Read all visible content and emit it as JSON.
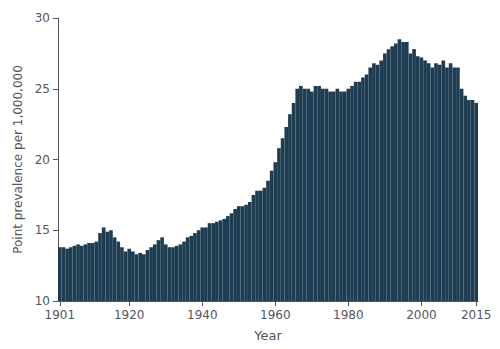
{
  "chart_data": {
    "type": "bar",
    "x": [
      1901,
      1902,
      1903,
      1904,
      1905,
      1906,
      1907,
      1908,
      1909,
      1910,
      1911,
      1912,
      1913,
      1914,
      1915,
      1916,
      1917,
      1918,
      1919,
      1920,
      1921,
      1922,
      1923,
      1924,
      1925,
      1926,
      1927,
      1928,
      1929,
      1930,
      1931,
      1932,
      1933,
      1934,
      1935,
      1936,
      1937,
      1938,
      1939,
      1940,
      1941,
      1942,
      1943,
      1944,
      1945,
      1946,
      1947,
      1948,
      1949,
      1950,
      1951,
      1952,
      1953,
      1954,
      1955,
      1956,
      1957,
      1958,
      1959,
      1960,
      1961,
      1962,
      1963,
      1964,
      1965,
      1966,
      1967,
      1968,
      1969,
      1970,
      1971,
      1972,
      1973,
      1974,
      1975,
      1976,
      1977,
      1978,
      1979,
      1980,
      1981,
      1982,
      1983,
      1984,
      1985,
      1986,
      1987,
      1988,
      1989,
      1990,
      1991,
      1992,
      1993,
      1994,
      1995,
      1996,
      1997,
      1998,
      1999,
      2000,
      2001,
      2002,
      2003,
      2004,
      2005,
      2006,
      2007,
      2008,
      2009,
      2010,
      2011,
      2012,
      2013,
      2014,
      2015
    ],
    "values": [
      13.8,
      13.8,
      13.7,
      13.8,
      13.9,
      14.0,
      13.9,
      14.0,
      14.1,
      14.1,
      14.2,
      14.8,
      15.2,
      14.9,
      15.0,
      14.5,
      14.2,
      13.8,
      13.5,
      13.7,
      13.5,
      13.3,
      13.4,
      13.3,
      13.6,
      13.8,
      14.0,
      14.3,
      14.5,
      14.0,
      13.8,
      13.8,
      13.9,
      14.0,
      14.2,
      14.5,
      14.6,
      14.8,
      15.0,
      15.2,
      15.2,
      15.5,
      15.5,
      15.6,
      15.7,
      15.8,
      16.0,
      16.2,
      16.5,
      16.7,
      16.7,
      16.8,
      17.0,
      17.5,
      17.8,
      17.8,
      18.0,
      18.5,
      19.2,
      19.8,
      20.8,
      21.5,
      22.3,
      23.2,
      24.0,
      25.0,
      25.2,
      25.0,
      25.0,
      24.8,
      25.2,
      25.2,
      25.0,
      25.0,
      24.8,
      24.8,
      25.0,
      24.8,
      24.8,
      25.0,
      25.2,
      25.5,
      25.5,
      25.8,
      26.0,
      26.5,
      26.8,
      26.7,
      27.0,
      27.5,
      27.8,
      28.0,
      28.2,
      28.5,
      28.3,
      28.3,
      27.5,
      27.8,
      27.3,
      27.2,
      27.0,
      26.8,
      26.5,
      26.8,
      26.7,
      27.0,
      26.5,
      26.8,
      26.5,
      26.5,
      25.0,
      24.5,
      24.2,
      24.2,
      24.0
    ],
    "color": "#1e3d52",
    "xlabel": "Year",
    "ylabel": "Point prevalence per 1,000,000",
    "xlim": [
      1900.5,
      2015.5
    ],
    "xticks": [
      1901,
      1920,
      1940,
      1960,
      1980,
      2000,
      2015
    ],
    "ylim": [
      10,
      30
    ],
    "yticks": [
      10,
      15,
      20,
      25,
      30
    ],
    "grid": false
  }
}
